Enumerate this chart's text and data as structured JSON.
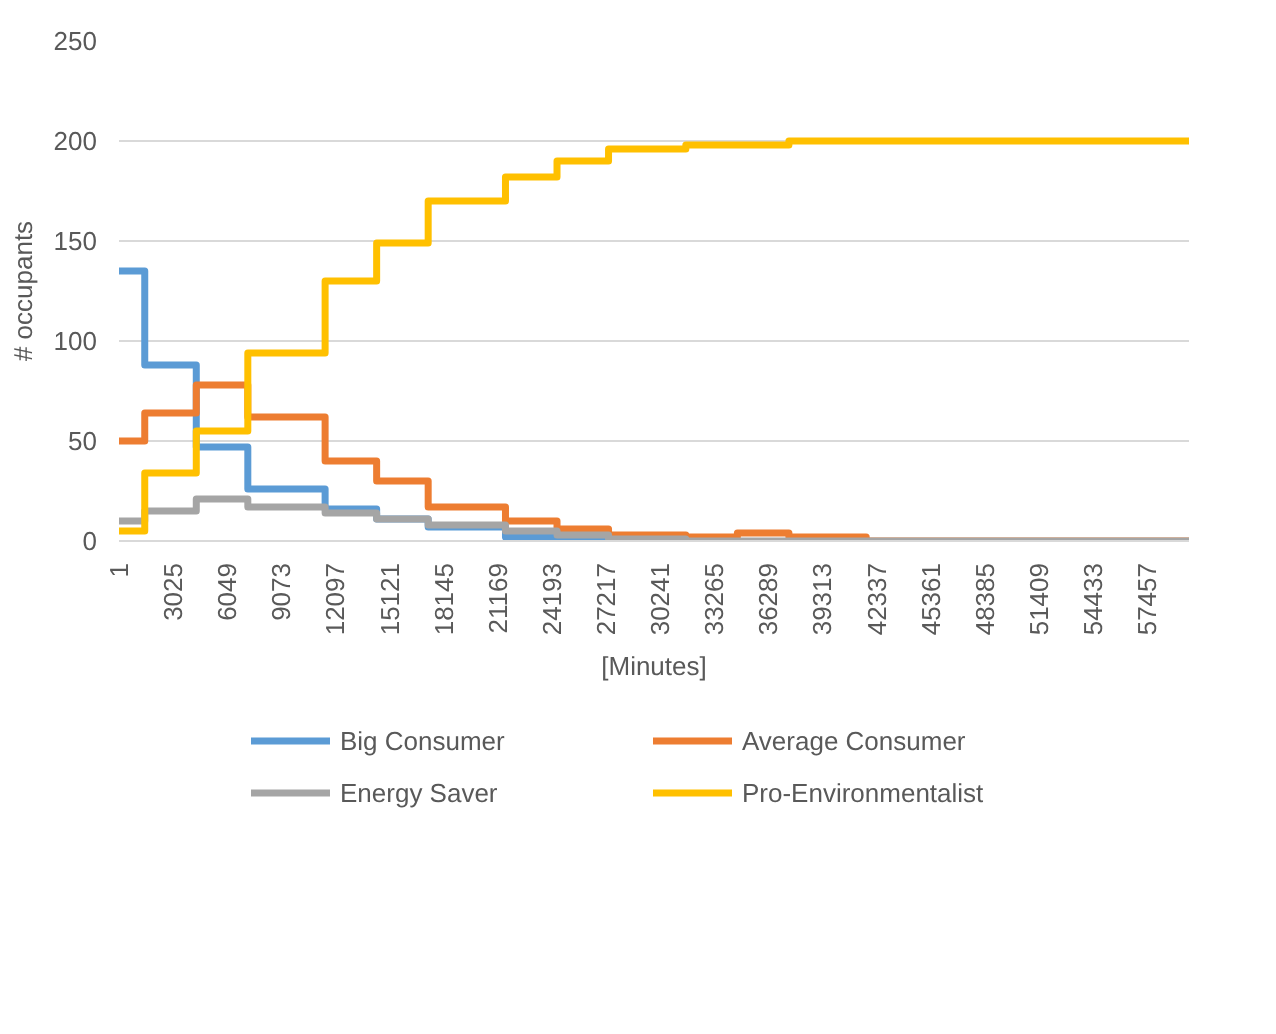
{
  "chart_data": {
    "type": "step",
    "xlabel": "[Minutes]",
    "ylabel": "# occupants",
    "x": [
      1,
      1440,
      4320,
      7200,
      11520,
      14400,
      17280,
      21600,
      24480,
      27360,
      31680,
      34560,
      37440,
      41760,
      59800
    ],
    "series": [
      {
        "name": "Big Consumer",
        "color": "#5b9bd5",
        "values": [
          135,
          88,
          47,
          26,
          16,
          11,
          7,
          2,
          1,
          0,
          0,
          null,
          null,
          null,
          null
        ]
      },
      {
        "name": "Average Consumer",
        "color": "#ed7d31",
        "values": [
          50,
          64,
          78,
          62,
          40,
          30,
          17,
          10,
          6,
          3,
          2,
          4,
          2,
          0,
          0
        ]
      },
      {
        "name": "Energy Saver",
        "color": "#a5a5a5",
        "values": [
          10,
          15,
          21,
          17,
          14,
          11,
          8,
          5,
          3,
          1,
          0,
          0,
          0,
          0,
          0
        ]
      },
      {
        "name": "Pro-Environmentalist",
        "color": "#ffc000",
        "values": [
          5,
          34,
          55,
          94,
          130,
          149,
          170,
          182,
          190,
          196,
          198,
          198,
          200,
          200,
          200
        ]
      }
    ],
    "xlim": [
      1,
      59800
    ],
    "xticks": [
      1,
      3025,
      6049,
      9073,
      12097,
      15121,
      18145,
      21169,
      24193,
      27217,
      30241,
      33265,
      36289,
      39313,
      42337,
      45361,
      48385,
      51409,
      54433,
      57457
    ],
    "ylim": [
      0,
      250
    ],
    "yticks": [
      0,
      50,
      100,
      150,
      200,
      250
    ],
    "grid": "y",
    "legend": "bottom",
    "marker": "none",
    "line_style": "solid"
  }
}
